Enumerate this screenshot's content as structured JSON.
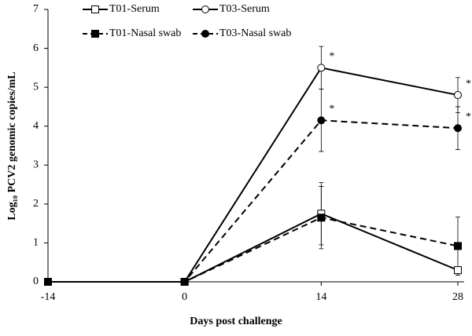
{
  "chart_data": {
    "type": "line",
    "xlabel": "Days post challenge",
    "ylabel": "Log₁₀ PCV2 genomic copies/mL",
    "x": [
      -14,
      0,
      14,
      28
    ],
    "xlim": [
      -14,
      28
    ],
    "xticks": [
      -14,
      0,
      14,
      28
    ],
    "ylim": [
      0,
      7
    ],
    "yticks": [
      0,
      1,
      2,
      3,
      4,
      5,
      6,
      7
    ],
    "legend": "top-left",
    "series": [
      {
        "name": "T01-Serum",
        "color": "#000000",
        "marker": "square",
        "marker_fill": "#ffffff",
        "linestyle": "solid",
        "values": [
          0,
          0,
          1.75,
          0.3
        ],
        "errors": [
          null,
          null,
          0.8,
          null
        ]
      },
      {
        "name": "T03-Serum",
        "color": "#000000",
        "marker": "circle",
        "marker_fill": "#ffffff",
        "linestyle": "solid",
        "values": [
          0,
          0,
          5.5,
          4.8
        ],
        "errors": [
          null,
          null,
          0.55,
          0.45
        ]
      },
      {
        "name": "T01-Nasal swab",
        "color": "#000000",
        "marker": "square",
        "marker_fill": "#000000",
        "linestyle": "dashed",
        "values": [
          0,
          0,
          1.65,
          0.92
        ],
        "errors": [
          null,
          null,
          0.8,
          0.75
        ]
      },
      {
        "name": "T03-Nasal swab",
        "color": "#000000",
        "marker": "circle",
        "marker_fill": "#000000",
        "linestyle": "dashed",
        "values": [
          0,
          0,
          4.15,
          3.95
        ],
        "errors": [
          null,
          null,
          0.8,
          0.55
        ]
      }
    ],
    "annotations": [
      {
        "text": "*",
        "x": 14,
        "y": 5.5
      },
      {
        "text": "*",
        "x": 28,
        "y": 4.8
      },
      {
        "text": "*",
        "x": 14,
        "y": 4.15
      },
      {
        "text": "*",
        "x": 28,
        "y": 3.95
      }
    ]
  }
}
